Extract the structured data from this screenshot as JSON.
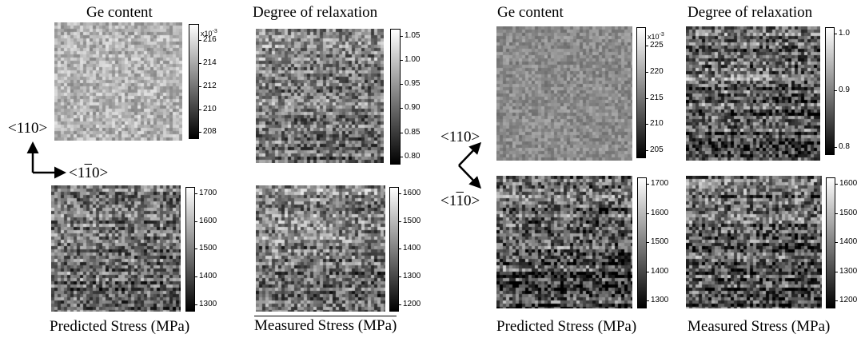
{
  "figures": [
    {
      "panels": [
        {
          "title": "Ge content",
          "cbar": {
            "unit": "x10",
            "unit_exp": "-3",
            "ticks": [
              "216",
              "214",
              "212",
              "210",
              "208"
            ]
          },
          "tone": {
            "base": 180,
            "spread": 90,
            "bands": 0.08,
            "dark": 0.0,
            "seed": 11
          }
        },
        {
          "title": "Degree of relaxation",
          "cbar": {
            "unit": "",
            "unit_exp": "",
            "ticks": [
              "1.05",
              "1.00",
              "0.95",
              "0.90",
              "0.85",
              "0.80"
            ]
          },
          "tone": {
            "base": 150,
            "spread": 140,
            "bands": 0.5,
            "dark": 0.45,
            "seed": 23
          }
        },
        {
          "title": "Predicted Stress (MPa)",
          "cbar": {
            "unit": "",
            "unit_exp": "",
            "ticks": [
              "1700",
              "1600",
              "1500",
              "1400",
              "1300"
            ]
          },
          "tone": {
            "base": 140,
            "spread": 150,
            "bands": 0.5,
            "dark": 0.5,
            "seed": 37
          }
        },
        {
          "title": "Measured Stress (MPa)",
          "cbar": {
            "unit": "",
            "unit_exp": "",
            "ticks": [
              "1600",
              "1500",
              "1400",
              "1300",
              "1200"
            ]
          },
          "tone": {
            "base": 145,
            "spread": 150,
            "bands": 0.5,
            "dark": 0.5,
            "seed": 41
          }
        }
      ],
      "axes": {
        "vertical": "<110>",
        "horizontal_prefix": "<1",
        "horizontal_bar": "1",
        "horizontal_suffix": "0>"
      }
    },
    {
      "panels": [
        {
          "title": "Ge content",
          "cbar": {
            "unit": "x10",
            "unit_exp": "-3",
            "ticks": [
              "225",
              "220",
              "215",
              "210",
              "205"
            ]
          },
          "tone": {
            "base": 140,
            "spread": 60,
            "bands": 0.05,
            "dark": 0.0,
            "seed": 53
          }
        },
        {
          "title": "Degree of relaxation",
          "cbar": {
            "unit": "",
            "unit_exp": "",
            "ticks": [
              "1.0",
              "0.9",
              "0.8"
            ]
          },
          "tone": {
            "base": 130,
            "spread": 160,
            "bands": 0.7,
            "dark": 0.5,
            "seed": 67
          }
        },
        {
          "title": "Predicted Stress (MPa)",
          "cbar": {
            "unit": "",
            "unit_exp": "",
            "ticks": [
              "1700",
              "1600",
              "1500",
              "1400",
              "1300"
            ]
          },
          "tone": {
            "base": 120,
            "spread": 170,
            "bands": 0.7,
            "dark": 0.6,
            "seed": 71
          }
        },
        {
          "title": "Measured Stress (MPa)",
          "cbar": {
            "unit": "",
            "unit_exp": "",
            "ticks": [
              "1600",
              "1500",
              "1400",
              "1300",
              "1200"
            ]
          },
          "tone": {
            "base": 125,
            "spread": 170,
            "bands": 0.7,
            "dark": 0.6,
            "seed": 83
          }
        }
      ],
      "axes": {
        "vertical": "<110>",
        "horizontal_prefix": "<1",
        "horizontal_bar": "1",
        "horizontal_suffix": "0>"
      }
    }
  ]
}
